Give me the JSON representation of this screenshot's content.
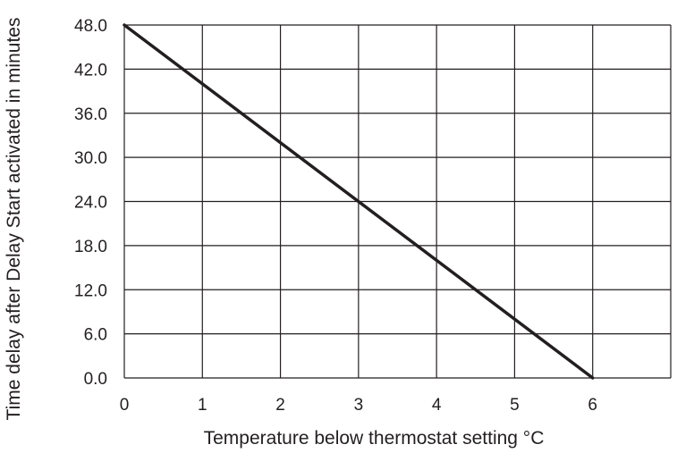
{
  "chart_data": {
    "type": "line",
    "title": "",
    "xlabel": "Temperature below thermostat setting °C",
    "ylabel": "Time delay after Delay Start activated in minutes",
    "x_ticks": [
      "0",
      "1",
      "2",
      "3",
      "4",
      "5",
      "6"
    ],
    "y_ticks": [
      "48.0",
      "42.0",
      "36.0",
      "30.0",
      "24.0",
      "18.0",
      "12.0",
      "6.0",
      "0.0"
    ],
    "xlim": [
      0,
      7
    ],
    "ylim": [
      0,
      48
    ],
    "grid": true,
    "legend": "none",
    "series": [
      {
        "x": [
          0,
          6
        ],
        "y": [
          48,
          0
        ]
      }
    ],
    "colors": {
      "line": "#231f20",
      "grid": "#231f20",
      "text": "#231f20"
    }
  }
}
